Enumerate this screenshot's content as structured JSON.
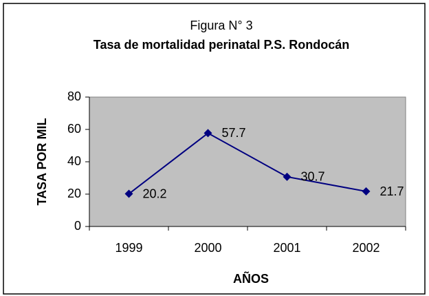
{
  "chart_data": {
    "type": "line",
    "title": "Figura N° 3",
    "subtitle": "Tasa de mortalidad perinatal P.S. Rondocán",
    "categories": [
      "1999",
      "2000",
      "2001",
      "2002"
    ],
    "series": [
      {
        "name": "Tasa",
        "color": "#000080",
        "values": [
          20.2,
          57.7,
          30.7,
          21.7
        ]
      }
    ],
    "xlabel": "AÑOS",
    "ylabel": "TASA POR MIL",
    "ylim": [
      0,
      80
    ],
    "yticks": [
      0,
      20,
      40,
      60,
      80
    ],
    "grid": false,
    "plot_background": "#c0c0c0"
  }
}
